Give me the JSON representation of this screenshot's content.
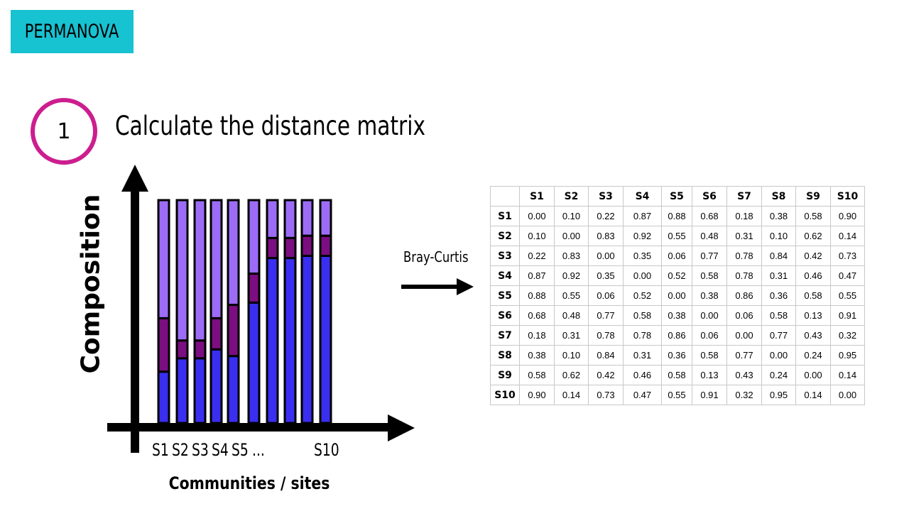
{
  "header": {
    "badge_text": "PERMANOVA"
  },
  "step": {
    "number": "1",
    "title": "Calculate the distance matrix"
  },
  "diagram": {
    "y_axis_label": "Composition",
    "x_axis_label": "Communities / sites",
    "tick_labels": [
      "S1",
      "S2",
      "S3",
      "S4",
      "S5",
      "...",
      "S10"
    ],
    "colors": {
      "top": "#9c6cf7",
      "middle": "#7b0e80",
      "bottom": "#3a2ef0",
      "outline": "#000000"
    },
    "bars": [
      {
        "top": 0.53,
        "middle": 0.24,
        "bottom": 0.23
      },
      {
        "top": 0.63,
        "middle": 0.08,
        "bottom": 0.29
      },
      {
        "top": 0.63,
        "middle": 0.08,
        "bottom": 0.29
      },
      {
        "top": 0.53,
        "middle": 0.14,
        "bottom": 0.33
      },
      {
        "top": 0.47,
        "middle": 0.23,
        "bottom": 0.3
      },
      {
        "top": 0.33,
        "middle": 0.13,
        "bottom": 0.54
      },
      {
        "top": 0.17,
        "middle": 0.09,
        "bottom": 0.74
      },
      {
        "top": 0.17,
        "middle": 0.09,
        "bottom": 0.74
      },
      {
        "top": 0.16,
        "middle": 0.09,
        "bottom": 0.75
      },
      {
        "top": 0.16,
        "middle": 0.09,
        "bottom": 0.75
      }
    ]
  },
  "arrow_label": "Bray-Curtis",
  "matrix": {
    "headers": [
      "S1",
      "S2",
      "S3",
      "S4",
      "S5",
      "S6",
      "S7",
      "S8",
      "S9",
      "S10"
    ],
    "rows": [
      {
        "label": "S1",
        "values": [
          "0.00",
          "0.10",
          "0.22",
          "0.87",
          "0.88",
          "0.68",
          "0.18",
          "0.38",
          "0.58",
          "0.90"
        ]
      },
      {
        "label": "S2",
        "values": [
          "0.10",
          "0.00",
          "0.83",
          "0.92",
          "0.55",
          "0.48",
          "0.31",
          "0.10",
          "0.62",
          "0.14"
        ]
      },
      {
        "label": "S3",
        "values": [
          "0.22",
          "0.83",
          "0.00",
          "0.35",
          "0.06",
          "0.77",
          "0.78",
          "0.84",
          "0.42",
          "0.73"
        ]
      },
      {
        "label": "S4",
        "values": [
          "0.87",
          "0.92",
          "0.35",
          "0.00",
          "0.52",
          "0.58",
          "0.78",
          "0.31",
          "0.46",
          "0.47"
        ]
      },
      {
        "label": "S5",
        "values": [
          "0.88",
          "0.55",
          "0.06",
          "0.52",
          "0.00",
          "0.38",
          "0.86",
          "0.36",
          "0.58",
          "0.55"
        ]
      },
      {
        "label": "S6",
        "values": [
          "0.68",
          "0.48",
          "0.77",
          "0.58",
          "0.38",
          "0.00",
          "0.06",
          "0.58",
          "0.13",
          "0.91"
        ]
      },
      {
        "label": "S7",
        "values": [
          "0.18",
          "0.31",
          "0.78",
          "0.78",
          "0.86",
          "0.06",
          "0.00",
          "0.77",
          "0.43",
          "0.32"
        ]
      },
      {
        "label": "S8",
        "values": [
          "0.38",
          "0.10",
          "0.84",
          "0.31",
          "0.36",
          "0.58",
          "0.77",
          "0.00",
          "0.24",
          "0.95"
        ]
      },
      {
        "label": "S9",
        "values": [
          "0.58",
          "0.62",
          "0.42",
          "0.46",
          "0.58",
          "0.13",
          "0.43",
          "0.24",
          "0.00",
          "0.14"
        ]
      },
      {
        "label": "S10",
        "values": [
          "0.90",
          "0.14",
          "0.73",
          "0.47",
          "0.55",
          "0.91",
          "0.32",
          "0.95",
          "0.14",
          "0.00"
        ]
      }
    ]
  }
}
